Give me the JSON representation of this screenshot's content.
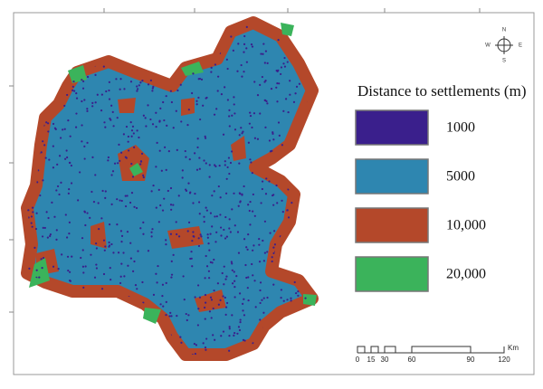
{
  "legend": {
    "title": "Distance to settlements (m)",
    "items": [
      {
        "label": "1000",
        "color": "#3a1f8c"
      },
      {
        "label": "5000",
        "color": "#2e86b0"
      },
      {
        "label": "10,000",
        "color": "#b4482a"
      },
      {
        "label": "20,000",
        "color": "#3bb35b"
      }
    ]
  },
  "scale_bar": {
    "unit": "Km",
    "labels": [
      "0",
      "15",
      "30",
      "60",
      "90",
      "120"
    ]
  },
  "north_arrow": {
    "letters": [
      "N",
      "E",
      "S",
      "W"
    ]
  }
}
